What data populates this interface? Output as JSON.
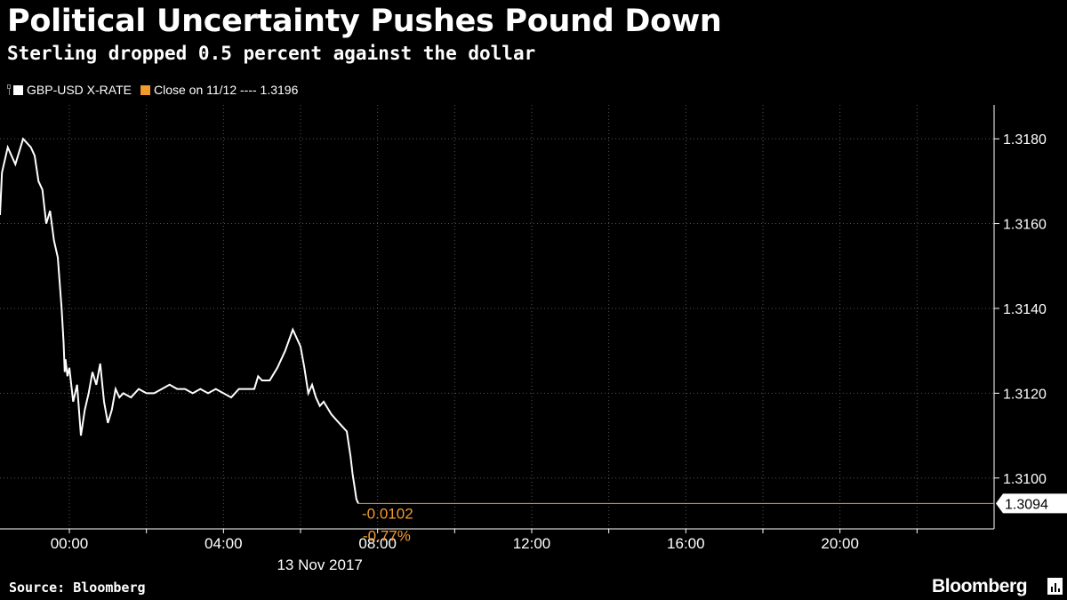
{
  "header": {
    "title": "Political Uncertainty Pushes Pound Down",
    "subtitle": "Sterling dropped 0.5 percent against the dollar"
  },
  "legend": {
    "series_label": "GBP-USD X-RATE",
    "reference_label": "Close on 11/12 ---- 1.3196"
  },
  "footer": {
    "source": "Source: Bloomberg",
    "brand": "Bloomberg"
  },
  "colors": {
    "background": "#000000",
    "series": "#ffffff",
    "accent": "#f39a2c",
    "grid": "#555555"
  },
  "chart_data": {
    "type": "line",
    "title": "Political Uncertainty Pushes Pound Down",
    "subtitle": "Sterling dropped 0.5 percent against the dollar",
    "x_axis": {
      "tick_labels": [
        "00:00",
        "04:00",
        "08:00",
        "12:00",
        "16:00",
        "20:00"
      ],
      "date_label": "13 Nov 2017",
      "range_hours": [
        -1.8,
        24.0
      ]
    },
    "y_axis": {
      "tick_labels": [
        "1.3100",
        "1.3120",
        "1.3140",
        "1.3160",
        "1.3180"
      ],
      "ticks": [
        1.31,
        1.312,
        1.314,
        1.316,
        1.318
      ],
      "range": [
        1.3088,
        1.3188
      ],
      "position": "right"
    },
    "grid": true,
    "series": [
      {
        "name": "GBP-USD X-RATE",
        "x_hours": [
          -1.8,
          -1.75,
          -1.6,
          -1.4,
          -1.2,
          -1.0,
          -0.9,
          -0.8,
          -0.7,
          -0.6,
          -0.5,
          -0.4,
          -0.3,
          -0.2,
          -0.15,
          -0.12,
          -0.1,
          -0.05,
          0.0,
          0.1,
          0.2,
          0.3,
          0.4,
          0.5,
          0.6,
          0.7,
          0.8,
          0.9,
          1.0,
          1.1,
          1.2,
          1.3,
          1.4,
          1.6,
          1.8,
          2.0,
          2.2,
          2.4,
          2.6,
          2.8,
          3.0,
          3.2,
          3.4,
          3.6,
          3.8,
          4.0,
          4.2,
          4.4,
          4.6,
          4.8,
          4.9,
          5.0,
          5.2,
          5.4,
          5.6,
          5.8,
          5.9,
          6.0,
          6.1,
          6.2,
          6.3,
          6.4,
          6.5,
          6.6,
          6.8,
          7.0,
          7.2,
          7.3,
          7.35,
          7.4,
          7.45,
          7.5
        ],
        "values": [
          1.3162,
          1.3172,
          1.3178,
          1.3174,
          1.318,
          1.3178,
          1.3176,
          1.317,
          1.3168,
          1.316,
          1.3163,
          1.3156,
          1.3152,
          1.314,
          1.3132,
          1.3125,
          1.3128,
          1.3124,
          1.3126,
          1.3118,
          1.3122,
          1.311,
          1.3116,
          1.312,
          1.3125,
          1.3122,
          1.3127,
          1.3118,
          1.3113,
          1.3116,
          1.3121,
          1.3119,
          1.312,
          1.3119,
          1.3121,
          1.312,
          1.312,
          1.3121,
          1.3122,
          1.3121,
          1.3121,
          1.312,
          1.3121,
          1.312,
          1.3121,
          1.312,
          1.3119,
          1.3121,
          1.3121,
          1.3121,
          1.3124,
          1.3123,
          1.3123,
          1.3126,
          1.313,
          1.3135,
          1.3133,
          1.3131,
          1.3126,
          1.312,
          1.3122,
          1.3119,
          1.3117,
          1.3118,
          1.3115,
          1.3113,
          1.3111,
          1.3105,
          1.3101,
          1.3098,
          1.3095,
          1.3094
        ]
      }
    ],
    "reference_line": {
      "label": "Close on 11/12 ---- 1.3196",
      "value": 1.3196
    },
    "last_value_label": "1.3094",
    "last_value": 1.3094,
    "annotations": {
      "change": "-0.0102",
      "change_percent": "-0.77%"
    }
  }
}
